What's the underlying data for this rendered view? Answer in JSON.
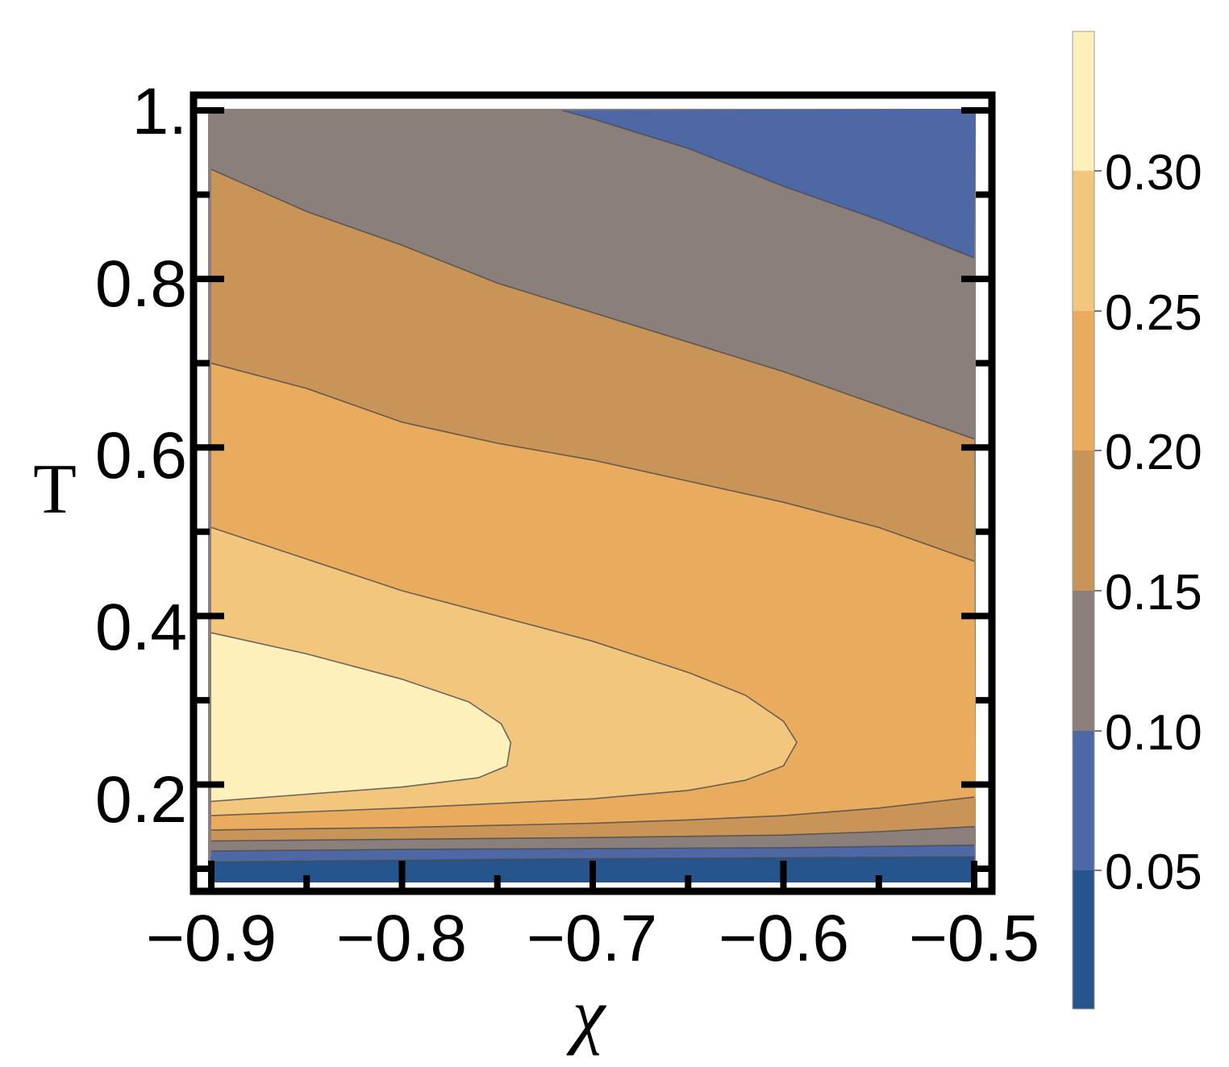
{
  "chart_data": {
    "type": "contour",
    "x_label": "χ",
    "y_label": "T",
    "xlim": [
      -0.9,
      -0.5
    ],
    "ylim": [
      0.1,
      1.0
    ],
    "x_ticks": [
      {
        "value": -0.9,
        "label": "−0.9"
      },
      {
        "value": -0.8,
        "label": "−0.8"
      },
      {
        "value": -0.7,
        "label": "−0.7"
      },
      {
        "value": -0.6,
        "label": "−0.6"
      },
      {
        "value": -0.5,
        "label": "−0.5"
      }
    ],
    "y_ticks": [
      {
        "value": 0.2,
        "label": "0.2"
      },
      {
        "value": 0.4,
        "label": "0.4"
      },
      {
        "value": 0.6,
        "label": "0.6"
      },
      {
        "value": 0.8,
        "label": "0.8"
      },
      {
        "value": 1.0,
        "label": "1."
      }
    ],
    "contour_levels": [
      0.05,
      0.1,
      0.15,
      0.2,
      0.25,
      0.3
    ],
    "colorbar": {
      "range": [
        0.0,
        0.35
      ],
      "tick_labels": [
        "0.30",
        "0.25",
        "0.20",
        "0.15",
        "0.10",
        "0.05"
      ],
      "tick_values": [
        0.3,
        0.25,
        0.2,
        0.15,
        0.1,
        0.05
      ]
    },
    "band_colors": [
      "#25558c",
      "#4e68a6",
      "#8b7f7c",
      "#c99457",
      "#e9ab5e",
      "#f3c67e",
      "#fef0bb"
    ],
    "contours": [
      {
        "level": 0.05,
        "points": [
          [
            -0.9,
            0.108
          ],
          [
            -0.8,
            0.11
          ],
          [
            -0.7,
            0.112
          ],
          [
            -0.6,
            0.113
          ],
          [
            -0.5,
            0.114
          ]
        ]
      },
      {
        "level": 0.1,
        "points": [
          [
            -0.9,
            0.121
          ],
          [
            -0.8,
            0.123
          ],
          [
            -0.7,
            0.124
          ],
          [
            -0.6,
            0.125
          ],
          [
            -0.5,
            0.128
          ]
        ]
      },
      {
        "level": 0.1,
        "points": [
          [
            -0.716,
            1.0
          ],
          [
            -0.7,
            0.99
          ],
          [
            -0.65,
            0.955
          ],
          [
            -0.6,
            0.91
          ],
          [
            -0.55,
            0.87
          ],
          [
            -0.5,
            0.825
          ]
        ]
      },
      {
        "level": 0.15,
        "points": [
          [
            -0.9,
            0.133
          ],
          [
            -0.8,
            0.135
          ],
          [
            -0.7,
            0.137
          ],
          [
            -0.6,
            0.14
          ],
          [
            -0.55,
            0.144
          ],
          [
            -0.5,
            0.15
          ]
        ]
      },
      {
        "level": 0.15,
        "points": [
          [
            -0.9,
            0.93
          ],
          [
            -0.85,
            0.88
          ],
          [
            -0.8,
            0.84
          ],
          [
            -0.75,
            0.795
          ],
          [
            -0.7,
            0.76
          ],
          [
            -0.65,
            0.725
          ],
          [
            -0.6,
            0.69
          ],
          [
            -0.55,
            0.65
          ],
          [
            -0.5,
            0.61
          ]
        ]
      },
      {
        "level": 0.2,
        "points": [
          [
            -0.9,
            0.146
          ],
          [
            -0.8,
            0.149
          ],
          [
            -0.7,
            0.154
          ],
          [
            -0.65,
            0.158
          ],
          [
            -0.6,
            0.163
          ],
          [
            -0.55,
            0.172
          ],
          [
            -0.5,
            0.185
          ]
        ]
      },
      {
        "level": 0.2,
        "points": [
          [
            -0.9,
            0.7
          ],
          [
            -0.85,
            0.67
          ],
          [
            -0.8,
            0.63
          ],
          [
            -0.75,
            0.605
          ],
          [
            -0.7,
            0.585
          ],
          [
            -0.65,
            0.56
          ],
          [
            -0.6,
            0.535
          ],
          [
            -0.55,
            0.505
          ],
          [
            -0.5,
            0.465
          ]
        ]
      },
      {
        "level": 0.25,
        "points": [
          [
            -0.9,
            0.163
          ],
          [
            -0.8,
            0.172
          ],
          [
            -0.7,
            0.183
          ],
          [
            -0.65,
            0.193
          ],
          [
            -0.62,
            0.205
          ],
          [
            -0.6,
            0.222
          ],
          [
            -0.593,
            0.25
          ],
          [
            -0.6,
            0.275
          ],
          [
            -0.62,
            0.306
          ],
          [
            -0.65,
            0.333
          ],
          [
            -0.7,
            0.37
          ],
          [
            -0.8,
            0.43
          ],
          [
            -0.9,
            0.505
          ]
        ]
      },
      {
        "level": 0.3,
        "points": [
          [
            -0.9,
            0.18
          ],
          [
            -0.8,
            0.197
          ],
          [
            -0.76,
            0.208
          ],
          [
            -0.745,
            0.222
          ],
          [
            -0.743,
            0.25
          ],
          [
            -0.748,
            0.272
          ],
          [
            -0.765,
            0.298
          ],
          [
            -0.8,
            0.325
          ],
          [
            -0.85,
            0.355
          ],
          [
            -0.9,
            0.38
          ]
        ]
      }
    ]
  }
}
